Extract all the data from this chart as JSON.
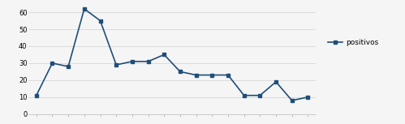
{
  "values": [
    11,
    30,
    28,
    62,
    55,
    29,
    31,
    31,
    35,
    25,
    23,
    23,
    23,
    11,
    11,
    19,
    8,
    10
  ],
  "line_color": "#1F4E79",
  "marker": "s",
  "marker_size": 3,
  "line_width": 1.2,
  "legend_label": "positivos",
  "ylim": [
    0,
    65
  ],
  "yticks": [
    0,
    10,
    20,
    30,
    40,
    50,
    60
  ],
  "background_color": "#f5f5f5",
  "grid_color": "#d0d0d0",
  "tick_label_fontsize": 6,
  "legend_fontsize": 6.5
}
